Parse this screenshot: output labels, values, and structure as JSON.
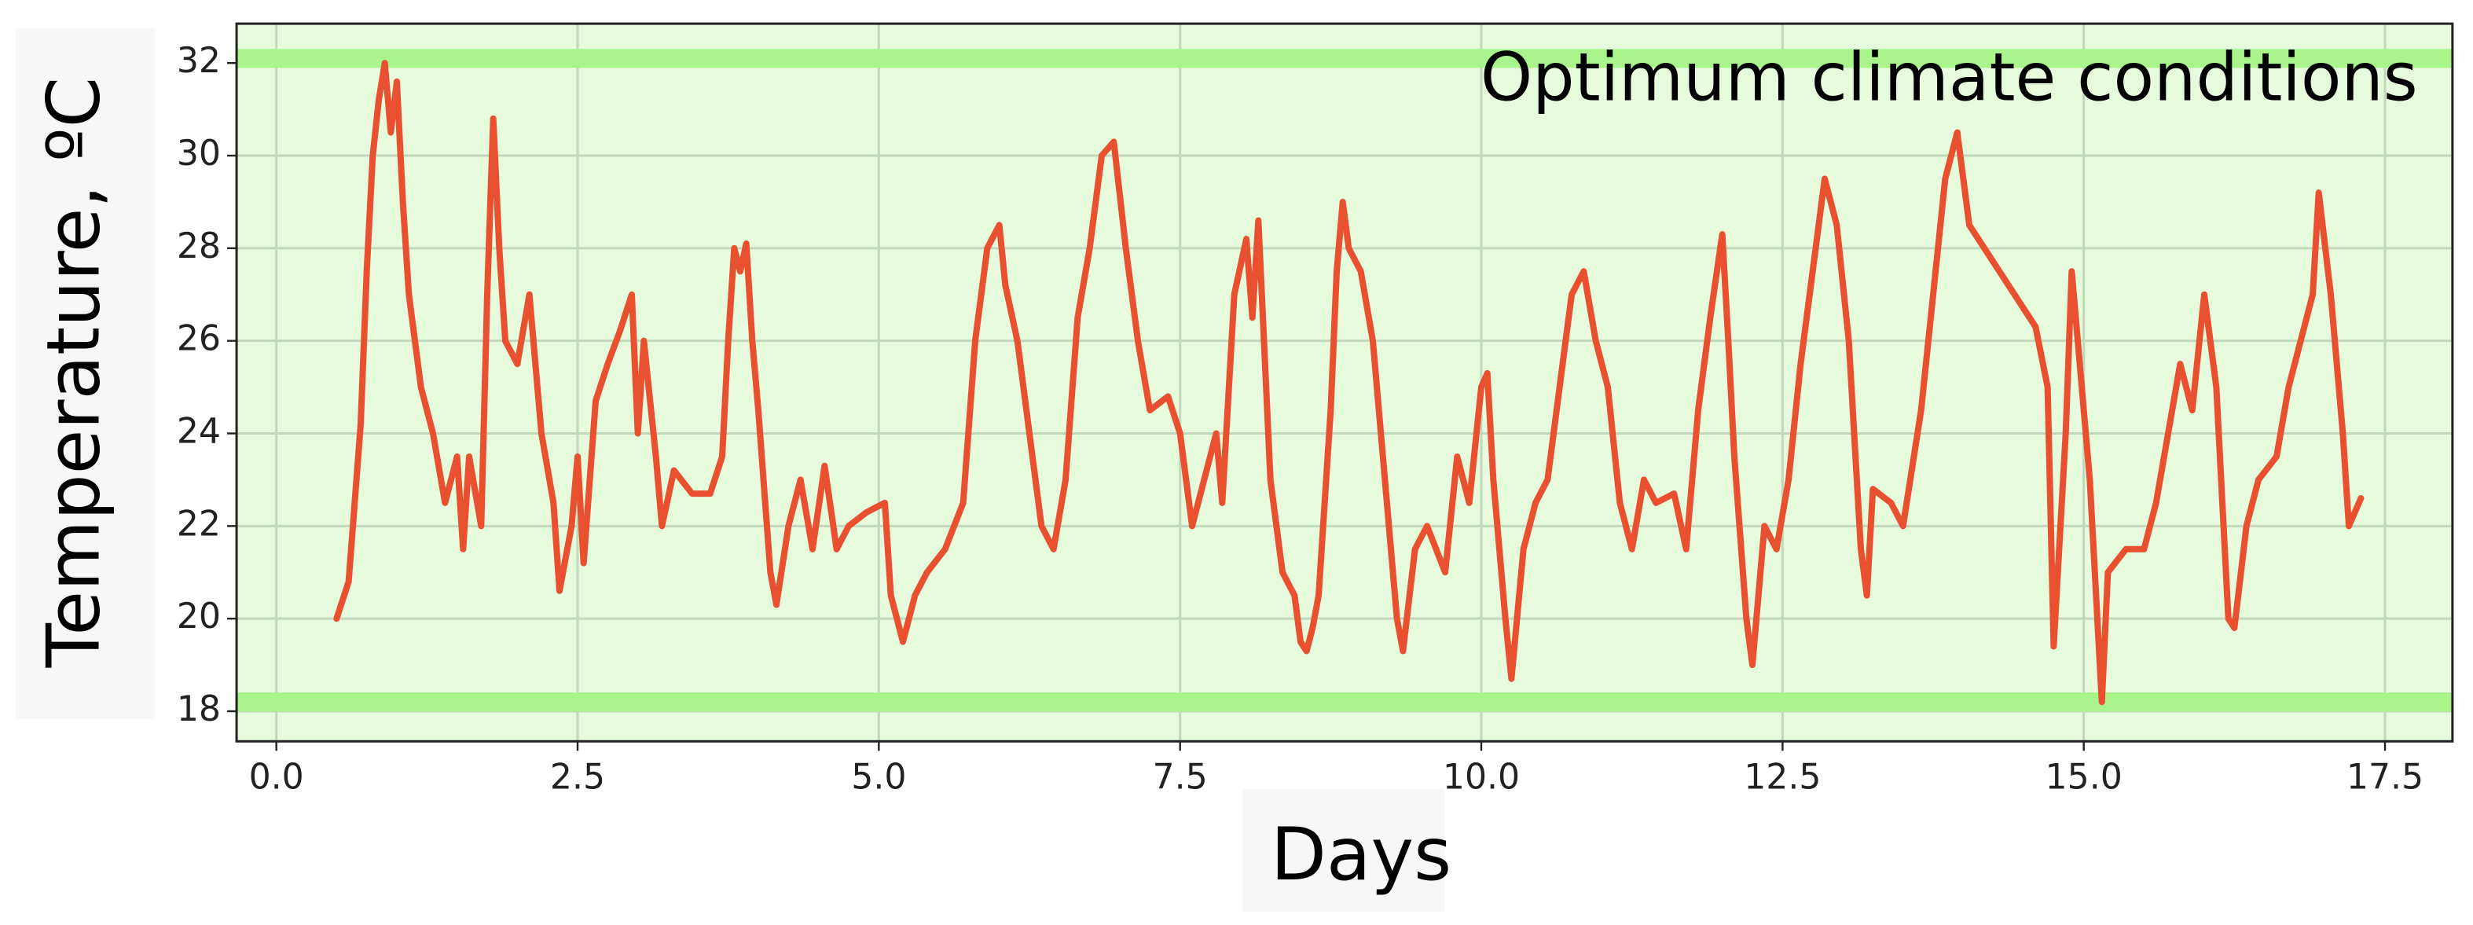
{
  "chart_data": {
    "type": "line",
    "x_label": "Days",
    "y_label": "Temperature, ºC",
    "annotation": "Optimum climate conditions",
    "color": "#e8502f",
    "background": "#e6fadc",
    "grid": true,
    "reference_lines": {
      "values": [
        18.2,
        32.1
      ],
      "color": "#a9f58c"
    },
    "xlim": [
      -0.33,
      18.06
    ],
    "ylim": [
      17.35,
      32.85
    ],
    "xticks": [
      {
        "value": 0,
        "label": "0.0"
      },
      2.5,
      {
        "value": 5,
        "label": "5.0"
      },
      7.5,
      {
        "value": 10,
        "label": "10.0"
      },
      12.5,
      {
        "value": 15,
        "label": "15.0"
      },
      17.5
    ],
    "yticks": [
      18,
      20,
      22,
      24,
      26,
      28,
      30,
      32
    ],
    "x": [
      0.5,
      0.6,
      0.7,
      0.75,
      0.8,
      0.85,
      0.9,
      0.95,
      1.0,
      1.05,
      1.1,
      1.2,
      1.3,
      1.4,
      1.5,
      1.55,
      1.6,
      1.7,
      1.75,
      1.8,
      1.85,
      1.9,
      2.0,
      2.1,
      2.2,
      2.3,
      2.35,
      2.45,
      2.5,
      2.55,
      2.65,
      2.75,
      2.85,
      2.95,
      3.0,
      3.05,
      3.15,
      3.2,
      3.3,
      3.45,
      3.6,
      3.7,
      3.75,
      3.8,
      3.85,
      3.9,
      3.95,
      4.0,
      4.1,
      4.15,
      4.25,
      4.35,
      4.45,
      4.55,
      4.65,
      4.75,
      4.9,
      5.05,
      5.1,
      5.2,
      5.3,
      5.4,
      5.55,
      5.7,
      5.8,
      5.9,
      6.0,
      6.05,
      6.15,
      6.25,
      6.35,
      6.45,
      6.55,
      6.65,
      6.75,
      6.85,
      6.95,
      7.05,
      7.15,
      7.25,
      7.4,
      7.5,
      7.6,
      7.7,
      7.8,
      7.85,
      7.95,
      8.05,
      8.1,
      8.15,
      8.25,
      8.35,
      8.45,
      8.5,
      8.55,
      8.6,
      8.65,
      8.75,
      8.8,
      8.85,
      8.9,
      9.0,
      9.1,
      9.2,
      9.3,
      9.35,
      9.45,
      9.55,
      9.7,
      9.8,
      9.9,
      10.0,
      10.05,
      10.1,
      10.2,
      10.25,
      10.35,
      10.45,
      10.55,
      10.65,
      10.75,
      10.85,
      10.95,
      11.05,
      11.15,
      11.25,
      11.35,
      11.45,
      11.6,
      11.7,
      11.8,
      11.9,
      12.0,
      12.05,
      12.1,
      12.2,
      12.25,
      12.35,
      12.45,
      12.55,
      12.65,
      12.75,
      12.85,
      12.95,
      13.05,
      13.15,
      13.2,
      13.25,
      13.4,
      13.5,
      13.65,
      13.75,
      13.85,
      13.95,
      14.05,
      14.6,
      14.7,
      14.75,
      14.85,
      14.9,
      14.95,
      15.05,
      15.15,
      15.2,
      15.35,
      15.5,
      15.6,
      15.7,
      15.8,
      15.9,
      16.0,
      16.1,
      16.15,
      16.2,
      16.25,
      16.35,
      16.45,
      16.6,
      16.7,
      16.8,
      16.9,
      16.95,
      17.05,
      17.15,
      17.2,
      17.3
    ],
    "values": [
      20.0,
      20.8,
      24.2,
      27.5,
      30.0,
      31.2,
      32.0,
      30.5,
      31.6,
      29.0,
      27.0,
      25.0,
      24.0,
      22.5,
      23.5,
      21.5,
      23.5,
      22.0,
      27.0,
      30.8,
      28.0,
      26.0,
      25.5,
      27.0,
      24.0,
      22.5,
      20.6,
      22.0,
      23.5,
      21.2,
      24.7,
      25.5,
      26.2,
      27.0,
      24.0,
      26.0,
      23.5,
      22.0,
      23.2,
      22.7,
      22.7,
      23.5,
      26.0,
      28.0,
      27.5,
      28.1,
      26.0,
      24.5,
      21.0,
      20.3,
      22.0,
      23.0,
      21.5,
      23.3,
      21.5,
      22.0,
      22.3,
      22.5,
      20.5,
      19.5,
      20.5,
      21.0,
      21.5,
      22.5,
      26.0,
      28.0,
      28.5,
      27.2,
      26.0,
      24.0,
      22.0,
      21.5,
      23.0,
      26.5,
      28.0,
      30.0,
      30.3,
      28.0,
      26.0,
      24.5,
      24.8,
      24.0,
      22.0,
      23.0,
      24.0,
      22.5,
      27.0,
      28.2,
      26.5,
      28.6,
      23.0,
      21.0,
      20.5,
      19.5,
      19.3,
      19.8,
      20.5,
      24.5,
      27.5,
      29.0,
      28.0,
      27.5,
      26.0,
      23.0,
      20.0,
      19.3,
      21.5,
      22.0,
      21.0,
      23.5,
      22.5,
      25.0,
      25.3,
      23.0,
      20.0,
      18.7,
      21.5,
      22.5,
      23.0,
      25.0,
      27.0,
      27.5,
      26.0,
      25.0,
      22.5,
      21.5,
      23.0,
      22.5,
      22.7,
      21.5,
      24.5,
      26.5,
      28.3,
      26.0,
      23.5,
      20.0,
      19.0,
      22.0,
      21.5,
      23.0,
      25.5,
      27.5,
      29.5,
      28.5,
      26.0,
      21.5,
      20.5,
      22.8,
      22.5,
      22.0,
      24.5,
      27.0,
      29.5,
      30.5,
      28.5,
      26.3,
      25.0,
      19.4,
      24.0,
      27.5,
      26.0,
      23.0,
      18.2,
      21.0,
      21.5,
      21.5,
      22.5,
      24.0,
      25.5,
      24.5,
      27.0,
      25.0,
      22.5,
      20.0,
      19.8,
      22.0,
      23.0,
      23.5,
      25.0,
      26.0,
      27.0,
      29.2,
      27.0,
      24.0,
      22.0,
      22.6
    ]
  }
}
